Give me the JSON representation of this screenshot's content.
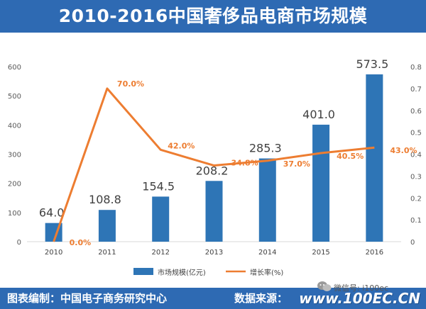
{
  "title": "2010-2016中国奢侈品电商市场规模",
  "footer": {
    "source_left": "图表编制：中国电子商务研究中心",
    "source_right": "数据来源：",
    "watermark_url": "www.100EC.CN",
    "watermark_account": "微信号: i100ec"
  },
  "colors": {
    "bar": "#2e75b6",
    "line": "#ed7d31",
    "header": "#2e6ab3",
    "bar_label": "#404040",
    "line_label": "#ed7d31"
  },
  "chart_data": {
    "type": "bar",
    "categories": [
      "2010",
      "2011",
      "2012",
      "2013",
      "2014",
      "2015",
      "2016"
    ],
    "series": [
      {
        "name": "市场规模(亿元)",
        "type": "bar",
        "axis": "left",
        "values": [
          64.0,
          108.8,
          154.5,
          208.2,
          285.3,
          401.0,
          573.5
        ],
        "labels": [
          "64.0",
          "108.8",
          "154.5",
          "208.2",
          "285.3",
          "401.0",
          "573.5"
        ]
      },
      {
        "name": "增长率(%)",
        "type": "line",
        "axis": "right",
        "values": [
          0.0,
          0.7,
          0.42,
          0.348,
          0.37,
          0.405,
          0.43
        ],
        "labels": [
          "0.0%",
          "70.0%",
          "42.0%",
          "34.8%",
          "37.0%",
          "40.5%",
          "43.0%"
        ]
      }
    ],
    "y_left": {
      "min": 0,
      "max": 600,
      "ticks": [
        0,
        100,
        200,
        300,
        400,
        500,
        600
      ],
      "tick_labels": [
        "0",
        "100",
        "200",
        "300",
        "400",
        "500",
        "600"
      ]
    },
    "y_right": {
      "min": 0,
      "max": 0.8,
      "ticks": [
        0,
        0.1,
        0.2,
        0.3,
        0.4,
        0.5,
        0.6,
        0.7,
        0.8
      ],
      "tick_labels": [
        "0",
        "0.1",
        "0.2",
        "0.3",
        "0.4",
        "0.5",
        "0.6",
        "0.7",
        "0.8"
      ]
    },
    "grid": false,
    "legend": "bottom-center"
  }
}
